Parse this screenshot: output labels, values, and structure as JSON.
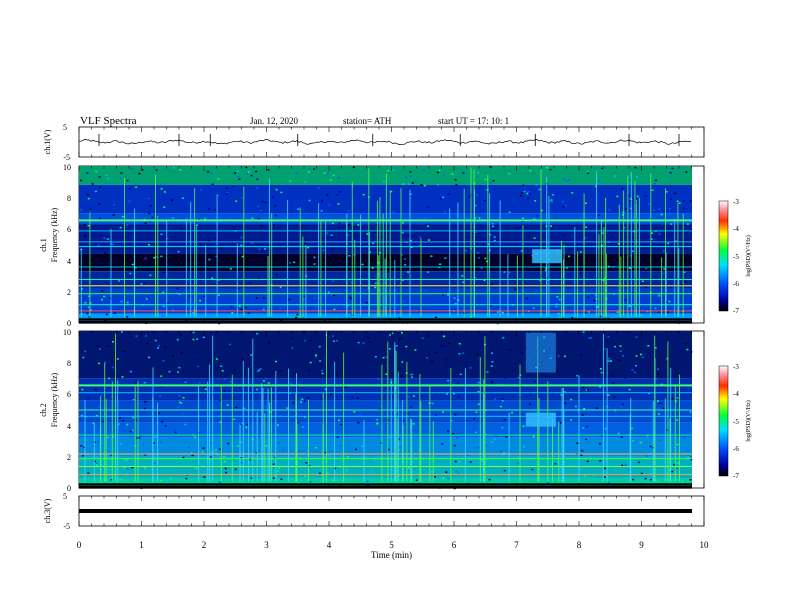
{
  "header": {
    "title": "VLF  Spectra",
    "date": "Jan. 12, 2020",
    "station": "station= ATH",
    "start": "start  UT  =   17: 10: 1"
  },
  "chart_data": [
    {
      "type": "line",
      "panel": "ch1-waveform",
      "ylabel": "ch.1(V)",
      "ylim": [
        -5,
        5
      ],
      "yticks": [
        "5",
        "-5"
      ],
      "xlim": [
        0,
        10
      ],
      "series": [
        {
          "values_mean": 0,
          "amplitude_approx": 0.6
        }
      ]
    },
    {
      "type": "heatmap",
      "panel": "ch1-spectrogram",
      "ylabel": "ch.1\nFrequency  (kHz)",
      "ylim": [
        0,
        10
      ],
      "yticks": [
        "0",
        "2",
        "4",
        "6",
        "8",
        "10"
      ],
      "xlim": [
        0,
        9.85
      ],
      "colorbar": {
        "label": "log(PSD)(V²/Hz)",
        "range": [
          -7,
          -3
        ],
        "ticks": [
          "-3",
          "-4",
          "-5",
          "-6",
          "-7"
        ]
      },
      "features": [
        {
          "name": "narrowband line",
          "freq_khz": 6.6
        },
        {
          "name": "burst",
          "time_min": 7.5,
          "freq_khz": 4.1
        }
      ]
    },
    {
      "type": "heatmap",
      "panel": "ch2-spectrogram",
      "ylabel": "ch.2\nFrequency  (kHz)",
      "ylim": [
        0,
        10
      ],
      "yticks": [
        "0",
        "2",
        "4",
        "6",
        "8",
        "10"
      ],
      "xlim": [
        0,
        9.85
      ],
      "colorbar": {
        "label": "log(PSD)(V²/Hz)",
        "range": [
          -7,
          -3
        ],
        "ticks": [
          "-3",
          "-4",
          "-5",
          "-6",
          "-7"
        ]
      },
      "features": [
        {
          "name": "narrowband line",
          "freq_khz": 6.6
        },
        {
          "name": "burst",
          "time_min": 7.4,
          "freq_khz": 4.2
        }
      ]
    },
    {
      "type": "line",
      "panel": "ch3-waveform",
      "ylabel": "ch.3(V)",
      "ylim": [
        -5,
        5
      ],
      "yticks": [
        "5",
        "-5"
      ],
      "xlim": [
        0,
        10
      ],
      "series": [
        {
          "values_mean": -1.5,
          "amplitude_approx": 0.1
        }
      ]
    }
  ],
  "xaxis": {
    "label": "Time  (min)",
    "ticks": [
      "0",
      "1",
      "2",
      "3",
      "4",
      "5",
      "6",
      "7",
      "8",
      "9",
      "10"
    ]
  },
  "colors": {
    "background": "#000030",
    "accent": "#00d040"
  }
}
